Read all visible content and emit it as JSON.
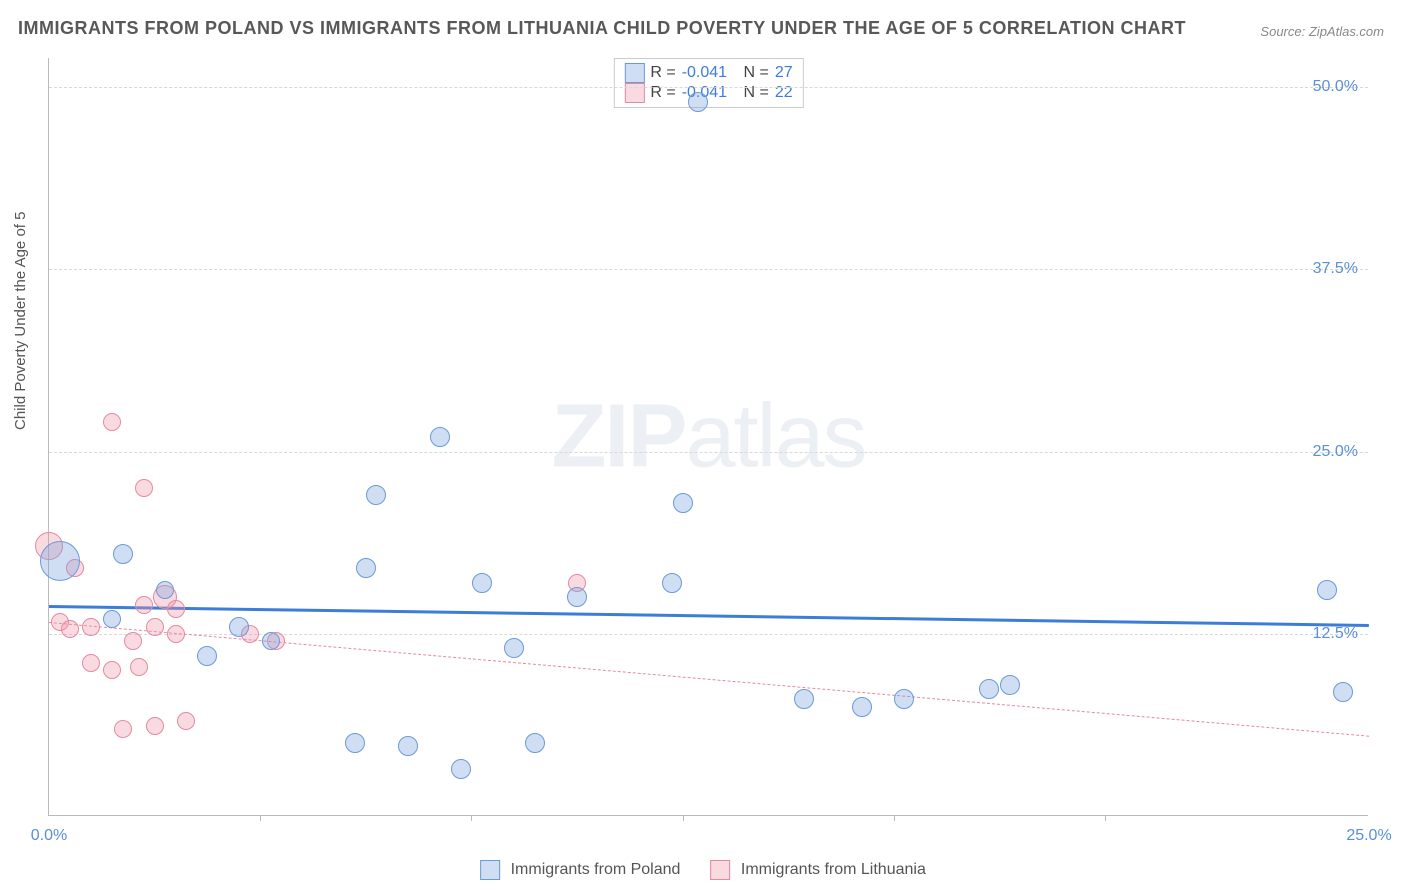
{
  "title": "IMMIGRANTS FROM POLAND VS IMMIGRANTS FROM LITHUANIA CHILD POVERTY UNDER THE AGE OF 5 CORRELATION CHART",
  "source_label": "Source:",
  "source_value": "ZipAtlas.com",
  "ylabel": "Child Poverty Under the Age of 5",
  "watermark_a": "ZIP",
  "watermark_b": "atlas",
  "chart": {
    "type": "scatter",
    "xlim": [
      0,
      25
    ],
    "ylim": [
      0,
      52
    ],
    "xtick_positions": [
      0,
      25
    ],
    "xtick_labels": [
      "0.0%",
      "25.0%"
    ],
    "xtick_minor": [
      4,
      8,
      12,
      16,
      20
    ],
    "ytick_positions": [
      12.5,
      25.0,
      37.5,
      50.0
    ],
    "ytick_labels": [
      "12.5%",
      "25.0%",
      "37.5%",
      "50.0%"
    ],
    "background_color": "#ffffff",
    "grid_color": "#d8d8d8",
    "series": [
      {
        "name": "Immigrants from Poland",
        "fill": "rgba(120,160,220,0.35)",
        "stroke": "#6a9bd8",
        "trend": {
          "color": "#3b7dd8",
          "width": 3,
          "dash": "solid",
          "y_at_x0": 14.5,
          "y_at_xmax": 13.2
        },
        "r_label": "R =",
        "r_value": "-0.041",
        "n_label": "N =",
        "n_value": "27",
        "points": [
          {
            "x": 0.2,
            "y": 17.5,
            "r": 20
          },
          {
            "x": 1.4,
            "y": 18.0,
            "r": 10
          },
          {
            "x": 1.2,
            "y": 13.5,
            "r": 9
          },
          {
            "x": 2.2,
            "y": 15.5,
            "r": 9
          },
          {
            "x": 3.0,
            "y": 11.0,
            "r": 10
          },
          {
            "x": 3.6,
            "y": 13.0,
            "r": 10
          },
          {
            "x": 4.2,
            "y": 12.0,
            "r": 9
          },
          {
            "x": 5.8,
            "y": 5.0,
            "r": 10
          },
          {
            "x": 6.0,
            "y": 17.0,
            "r": 10
          },
          {
            "x": 6.2,
            "y": 22.0,
            "r": 10
          },
          {
            "x": 6.8,
            "y": 4.8,
            "r": 10
          },
          {
            "x": 7.4,
            "y": 26.0,
            "r": 10
          },
          {
            "x": 7.8,
            "y": 3.2,
            "r": 10
          },
          {
            "x": 8.2,
            "y": 16.0,
            "r": 10
          },
          {
            "x": 8.8,
            "y": 11.5,
            "r": 10
          },
          {
            "x": 9.2,
            "y": 5.0,
            "r": 10
          },
          {
            "x": 10.0,
            "y": 15.0,
            "r": 10
          },
          {
            "x": 11.8,
            "y": 16.0,
            "r": 10
          },
          {
            "x": 12.0,
            "y": 21.5,
            "r": 10
          },
          {
            "x": 12.3,
            "y": 49.0,
            "r": 10
          },
          {
            "x": 14.3,
            "y": 8.0,
            "r": 10
          },
          {
            "x": 15.4,
            "y": 7.5,
            "r": 10
          },
          {
            "x": 16.2,
            "y": 8.0,
            "r": 10
          },
          {
            "x": 17.8,
            "y": 8.7,
            "r": 10
          },
          {
            "x": 18.2,
            "y": 9.0,
            "r": 10
          },
          {
            "x": 24.2,
            "y": 15.5,
            "r": 10
          },
          {
            "x": 24.5,
            "y": 8.5,
            "r": 10
          }
        ]
      },
      {
        "name": "Immigrants from Lithuania",
        "fill": "rgba(240,150,170,0.35)",
        "stroke": "#e48aa0",
        "trend": {
          "color": "#e48aa0",
          "width": 1,
          "dash": "dashed",
          "y_at_x0": 13.3,
          "y_at_xmax": 5.5
        },
        "r_label": "R =",
        "r_value": "-0.041",
        "n_label": "N =",
        "n_value": "22",
        "points": [
          {
            "x": 0.0,
            "y": 18.5,
            "r": 14
          },
          {
            "x": 0.2,
            "y": 13.3,
            "r": 9
          },
          {
            "x": 0.4,
            "y": 12.8,
            "r": 9
          },
          {
            "x": 0.5,
            "y": 17.0,
            "r": 9
          },
          {
            "x": 0.8,
            "y": 10.5,
            "r": 9
          },
          {
            "x": 0.8,
            "y": 13.0,
            "r": 9
          },
          {
            "x": 1.2,
            "y": 27.0,
            "r": 9
          },
          {
            "x": 1.2,
            "y": 10.0,
            "r": 9
          },
          {
            "x": 1.4,
            "y": 6.0,
            "r": 9
          },
          {
            "x": 1.6,
            "y": 12.0,
            "r": 9
          },
          {
            "x": 1.8,
            "y": 22.5,
            "r": 9
          },
          {
            "x": 1.8,
            "y": 14.5,
            "r": 9
          },
          {
            "x": 1.7,
            "y": 10.2,
            "r": 9
          },
          {
            "x": 2.0,
            "y": 6.2,
            "r": 9
          },
          {
            "x": 2.0,
            "y": 13.0,
            "r": 9
          },
          {
            "x": 2.2,
            "y": 15.0,
            "r": 12
          },
          {
            "x": 2.4,
            "y": 14.2,
            "r": 9
          },
          {
            "x": 2.4,
            "y": 12.5,
            "r": 9
          },
          {
            "x": 2.6,
            "y": 6.5,
            "r": 9
          },
          {
            "x": 3.8,
            "y": 12.5,
            "r": 9
          },
          {
            "x": 4.3,
            "y": 12.0,
            "r": 9
          },
          {
            "x": 10.0,
            "y": 16.0,
            "r": 9
          }
        ]
      }
    ]
  },
  "legend_bottom": {
    "series1_label": "Immigrants from Poland",
    "series2_label": "Immigrants from Lithuania"
  }
}
